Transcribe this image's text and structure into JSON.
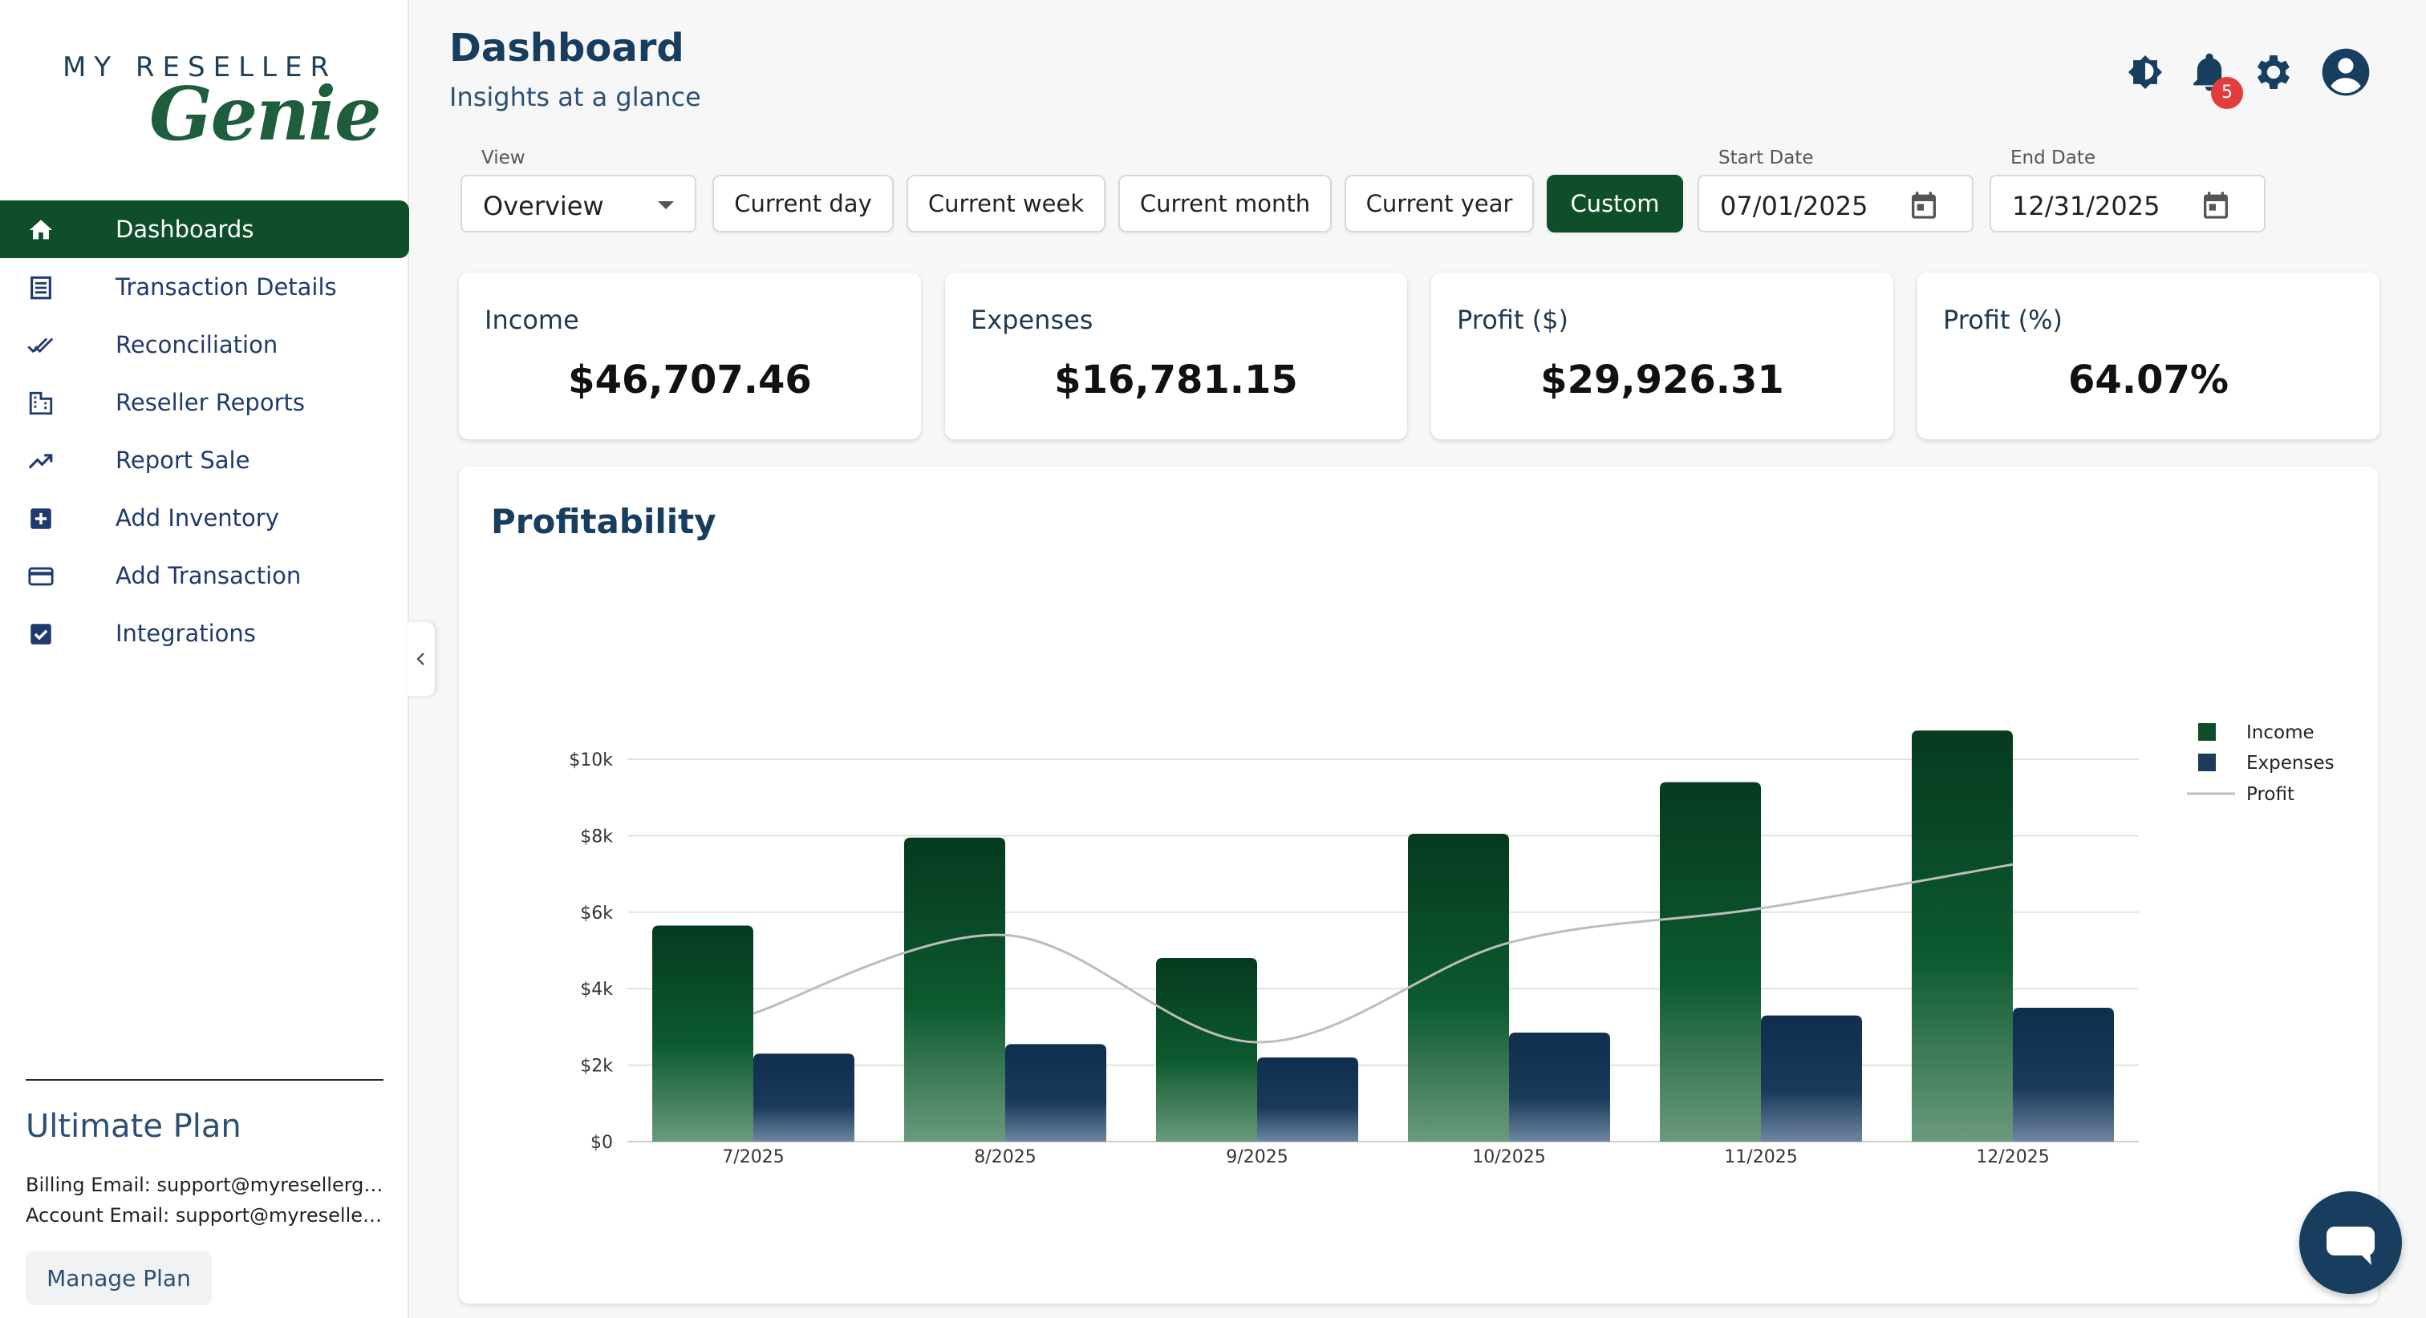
{
  "logo": {
    "line1": "MY RESELLER",
    "line2": "Genie"
  },
  "sidebar": {
    "items": [
      {
        "label": "Dashboards",
        "icon": "home-icon"
      },
      {
        "label": "Transaction Details",
        "icon": "receipt-icon"
      },
      {
        "label": "Reconciliation",
        "icon": "double-check-icon"
      },
      {
        "label": "Reseller Reports",
        "icon": "building-icon"
      },
      {
        "label": "Report Sale",
        "icon": "trending-up-icon"
      },
      {
        "label": "Add Inventory",
        "icon": "add-box-icon"
      },
      {
        "label": "Add Transaction",
        "icon": "credit-card-icon"
      },
      {
        "label": "Integrations",
        "icon": "checkbox-icon"
      }
    ],
    "active_index": 0
  },
  "plan": {
    "title": "Ultimate Plan",
    "billing_email": "Billing Email: support@myresellergeni...",
    "account_email": "Account Email: support@myresellerge...",
    "manage_label": "Manage Plan"
  },
  "header": {
    "title": "Dashboard",
    "subtitle": "Insights at a glance",
    "notification_count": "5"
  },
  "filters": {
    "view_label": "View",
    "view_value": "Overview",
    "ranges": [
      "Current day",
      "Current week",
      "Current month",
      "Current year",
      "Custom"
    ],
    "active_range": "Custom",
    "start_label": "Start Date",
    "start_value": "07/01/2025",
    "end_label": "End Date",
    "end_value": "12/31/2025"
  },
  "stats": [
    {
      "title": "Income",
      "value": "$46,707.46"
    },
    {
      "title": "Expenses",
      "value": "$16,781.15"
    },
    {
      "title": "Profit ($)",
      "value": "$29,926.31"
    },
    {
      "title": "Profit (%)",
      "value": "64.07%"
    }
  ],
  "colors": {
    "accent": "#0e4f2a",
    "income": "#0e4f2a",
    "expenses": "#1b3a5c",
    "profit_line": "#bdbdbd"
  },
  "chart_data": {
    "type": "bar",
    "title": "Profitability",
    "categories": [
      "7/2025",
      "8/2025",
      "9/2025",
      "10/2025",
      "11/2025",
      "12/2025"
    ],
    "series": [
      {
        "name": "Income",
        "type": "bar",
        "values": [
          5650,
          7950,
          4800,
          8050,
          9400,
          10750
        ]
      },
      {
        "name": "Expenses",
        "type": "bar",
        "values": [
          2300,
          2550,
          2200,
          2850,
          3300,
          3500
        ]
      },
      {
        "name": "Profit",
        "type": "line",
        "values": [
          3350,
          5400,
          2600,
          5200,
          6100,
          7250
        ]
      }
    ],
    "yticks": [
      "$0",
      "$2k",
      "$4k",
      "$6k",
      "$8k",
      "$10k"
    ],
    "ylim": [
      0,
      10000
    ],
    "grid": true,
    "legend_position": "top-right"
  }
}
